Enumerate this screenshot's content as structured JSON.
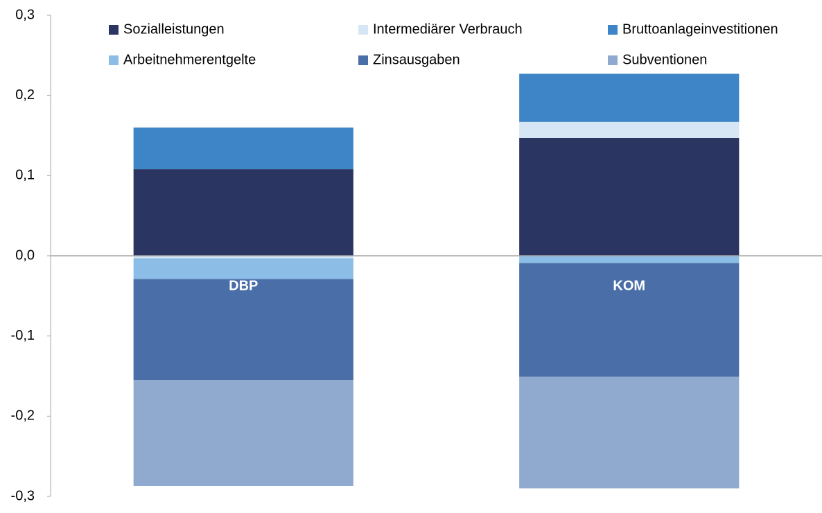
{
  "chart_data": {
    "type": "stacked_bar",
    "categories": [
      "DBP",
      "KOM"
    ],
    "series": [
      {
        "name": "Sozialleistungen",
        "color": "#2b3562",
        "values": [
          0.108,
          0.147
        ]
      },
      {
        "name": "Intermediärer Verbrauch",
        "color": "#d6e6f5",
        "values": [
          -0.003,
          0.02
        ]
      },
      {
        "name": "Bruttoanlageinvestitionen",
        "color": "#3d85c6",
        "values": [
          0.052,
          0.06
        ]
      },
      {
        "name": "Arbeitnehmerentgelte",
        "color": "#8bbde6",
        "values": [
          -0.026,
          -0.009
        ]
      },
      {
        "name": "Zinsausgaben",
        "color": "#4a6fa8",
        "values": [
          -0.126,
          -0.142
        ]
      },
      {
        "name": "Subventionen",
        "color": "#90a9cf",
        "values": [
          -0.132,
          -0.139
        ]
      }
    ],
    "ylim": [
      -0.3,
      0.3
    ],
    "yticks": [
      {
        "value": 0.3,
        "label": "0,3"
      },
      {
        "value": 0.2,
        "label": "0,2"
      },
      {
        "value": 0.1,
        "label": "0,1"
      },
      {
        "value": 0,
        "label": "0,0"
      },
      {
        "value": -0.1,
        "label": "-0,1"
      },
      {
        "value": -0.2,
        "label": "-0,2"
      },
      {
        "value": -0.3,
        "label": "-0,3"
      }
    ],
    "legend": "top"
  }
}
